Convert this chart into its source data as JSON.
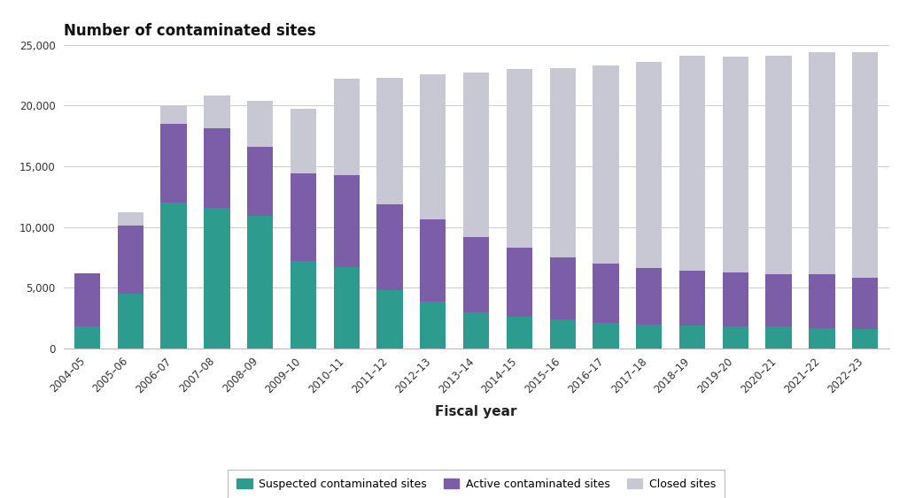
{
  "fiscal_years": [
    "2004–05",
    "2005–06",
    "2006–07",
    "2007–08",
    "2008–09",
    "2009–10",
    "2010–11",
    "2011–12",
    "2012–13",
    "2013–14",
    "2014–15",
    "2015–16",
    "2016–17",
    "2017–18",
    "2018–19",
    "2019–20",
    "2020–21",
    "2021–22",
    "2022–23"
  ],
  "suspected": [
    1800,
    4500,
    12000,
    11600,
    10900,
    7200,
    6700,
    4800,
    3900,
    3000,
    2600,
    2400,
    2100,
    2000,
    1900,
    1850,
    1800,
    1700,
    1600
  ],
  "active": [
    4400,
    5600,
    6500,
    6500,
    5700,
    7200,
    7600,
    7100,
    6700,
    6200,
    5700,
    5100,
    4900,
    4600,
    4500,
    4400,
    4300,
    4400,
    4200
  ],
  "closed": [
    0,
    1100,
    1500,
    2700,
    3800,
    5300,
    7900,
    10400,
    12000,
    13500,
    14700,
    15600,
    16300,
    17000,
    17700,
    17800,
    18000,
    18300,
    18600
  ],
  "color_suspected": "#2e9b8f",
  "color_active": "#7b5ea7",
  "color_closed": "#c8c8d4",
  "title": "Number of contaminated sites",
  "xlabel": "Fiscal year",
  "ylim": [
    0,
    25000
  ],
  "yticks": [
    0,
    5000,
    10000,
    15000,
    20000,
    25000
  ],
  "legend_labels": [
    "Suspected contaminated sites",
    "Active contaminated sites",
    "Closed sites"
  ],
  "background_color": "#ffffff",
  "bar_width": 0.6
}
